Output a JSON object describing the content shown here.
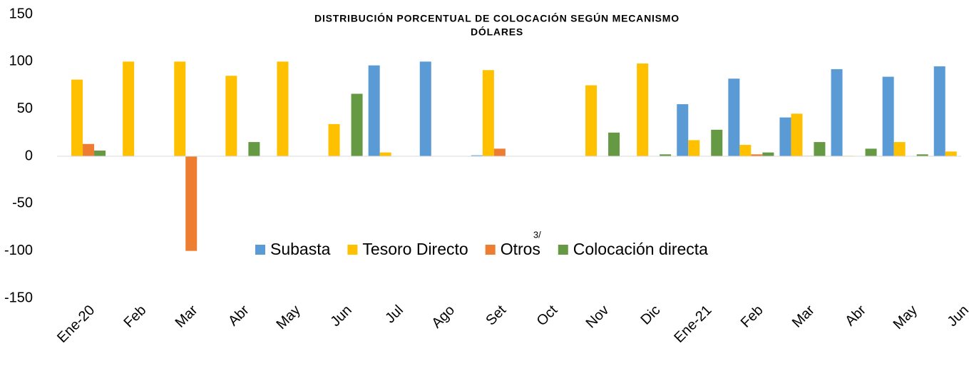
{
  "chart_data": {
    "type": "bar",
    "title": "DISTRIBUCIÓN PORCENTUAL DE COLOCACIÓN SEGÚN MECANISMO",
    "subtitle": "DÓLARES",
    "categories": [
      "Ene-20",
      "Feb",
      "Mar",
      "Abr",
      "May",
      "Jun",
      "Jul",
      "Ago",
      "Set",
      "Oct",
      "Nov",
      "Dic",
      "Ene-21",
      "Feb",
      "Mar",
      "Abr",
      "May",
      "Jun"
    ],
    "series": [
      {
        "name": "Subasta",
        "color": "#5b9bd5",
        "values": [
          null,
          null,
          null,
          null,
          null,
          null,
          96,
          100,
          1,
          null,
          null,
          null,
          55,
          82,
          41,
          92,
          84,
          95
        ]
      },
      {
        "name": "Tesoro Directo",
        "color": "#ffc000",
        "values": [
          81,
          100,
          100,
          85,
          100,
          34,
          4,
          null,
          91,
          null,
          75,
          98,
          17,
          12,
          45,
          0.5,
          15,
          5
        ]
      },
      {
        "name": "Otros",
        "superscript": "3/",
        "color": "#ed7d31",
        "values": [
          13,
          null,
          -100,
          null,
          null,
          null,
          null,
          null,
          8,
          null,
          null,
          null,
          null,
          2,
          0.5,
          null,
          null,
          null
        ]
      },
      {
        "name": "Colocación directa",
        "color": "#669944",
        "values": [
          6,
          null,
          null,
          15,
          null,
          66,
          null,
          null,
          null,
          null,
          25,
          2,
          28,
          4,
          15,
          8,
          2,
          null
        ]
      }
    ],
    "ylim": [
      -150,
      150
    ],
    "yticks": [
      -150,
      -100,
      -50,
      0,
      50,
      100,
      150
    ],
    "grid": false
  }
}
